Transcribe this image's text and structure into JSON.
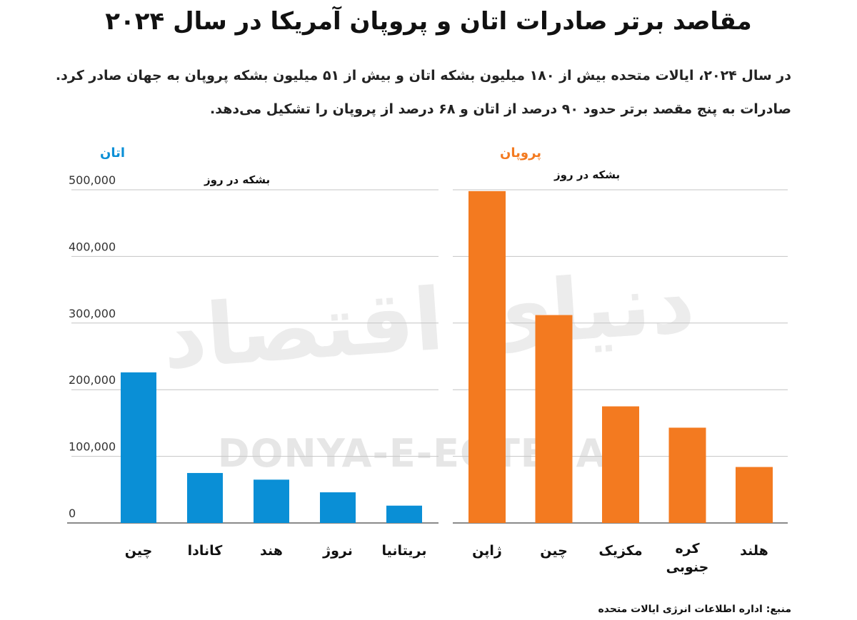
{
  "title": "مقاصد برتر صادرات اتان و پروپان آمریکا در سال ۲۰۲۴",
  "subtitle_line1": "در سال ۲۰۲۴، ایالات متحده بیش از ۱۸۰ میلیون بشکه اتان و بیش از ۵۱ میلیون بشکه پروپان به جهان صادر کرد.",
  "subtitle_line2": "صادرات به پنج مقصد برتر حدود ۹۰ درصد از اتان و ۶۸ درصد از پروپان را تشکیل می‌دهد.",
  "watermark": "DONYA-E-EQTESAD",
  "watermark_fa": "دنیای اقتصاد",
  "source": "منبع: اداره اطلاعات انرژی ایالات متحده",
  "chart_data": [
    {
      "type": "bar",
      "title": "اتان",
      "ylabel": "بشکه در روز",
      "color": "#0a8fd6",
      "categories": [
        "چین",
        "کانادا",
        "هند",
        "نروژ",
        "بریتانیا"
      ],
      "values": [
        226000,
        75000,
        65000,
        46000,
        26000
      ],
      "ylim": [
        0,
        500000
      ],
      "yticks": [
        0,
        100000,
        200000,
        300000,
        400000,
        500000
      ],
      "ytick_labels": [
        "0",
        "100,000",
        "200,000",
        "300,000",
        "400,000",
        "500,000"
      ],
      "grid": true
    },
    {
      "type": "bar",
      "title": "پروپان",
      "ylabel": "بشکه در روز",
      "color": "#f37a20",
      "categories": [
        "ژاپن",
        "چین",
        "مکزیک",
        "کره جنوبی",
        "هلند"
      ],
      "values": [
        498000,
        312000,
        175000,
        143000,
        84000
      ],
      "ylim": [
        0,
        500000
      ],
      "grid": true
    }
  ]
}
